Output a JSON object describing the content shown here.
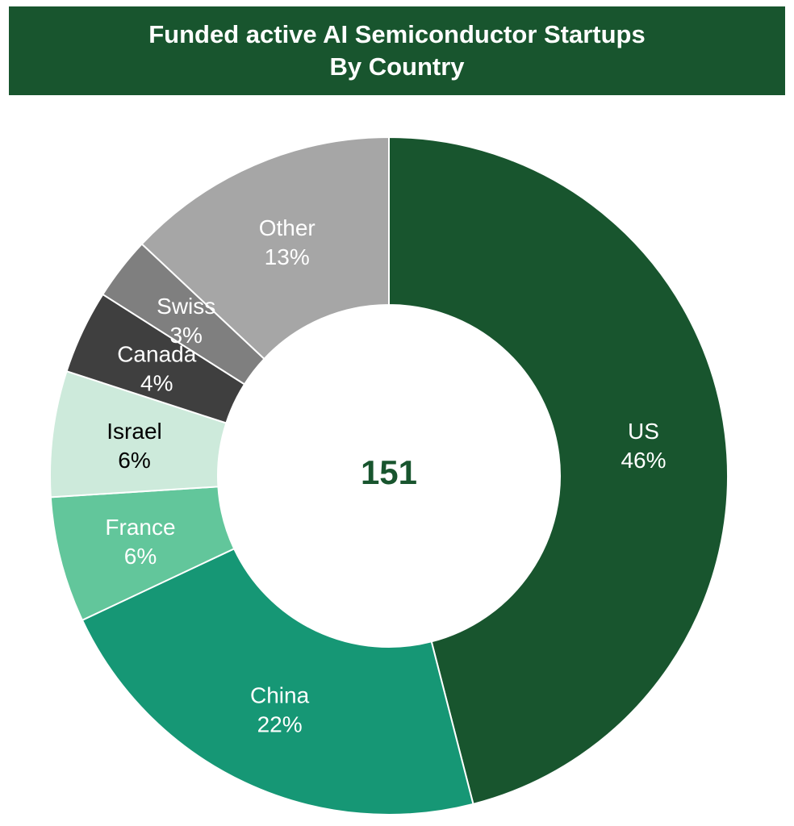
{
  "title": {
    "line1": "Funded active AI Semiconductor Startups",
    "line2": "By Country"
  },
  "chart_data": {
    "type": "pie",
    "variant": "donut",
    "center_total": "151",
    "slices": [
      {
        "name": "US",
        "label": "46%",
        "value": 46,
        "color": "#18552e",
        "label_color": "#ffffff"
      },
      {
        "name": "China",
        "label": "22%",
        "value": 22,
        "color": "#169775",
        "label_color": "#ffffff"
      },
      {
        "name": "France",
        "label": "6%",
        "value": 6,
        "color": "#62c69b",
        "label_color": "#ffffff"
      },
      {
        "name": "Israel",
        "label": "6%",
        "value": 6,
        "color": "#cdeadb",
        "label_color": "#000000"
      },
      {
        "name": "Canada",
        "label": "4%",
        "value": 4,
        "color": "#3f3f3f",
        "label_color": "#ffffff"
      },
      {
        "name": "Swiss",
        "label": "3%",
        "value": 3,
        "color": "#7f7f7f",
        "label_color": "#ffffff"
      },
      {
        "name": "Other",
        "label": "13%",
        "value": 13,
        "color": "#a6a6a6",
        "label_color": "#ffffff"
      }
    ],
    "center_color": "#18552e"
  }
}
